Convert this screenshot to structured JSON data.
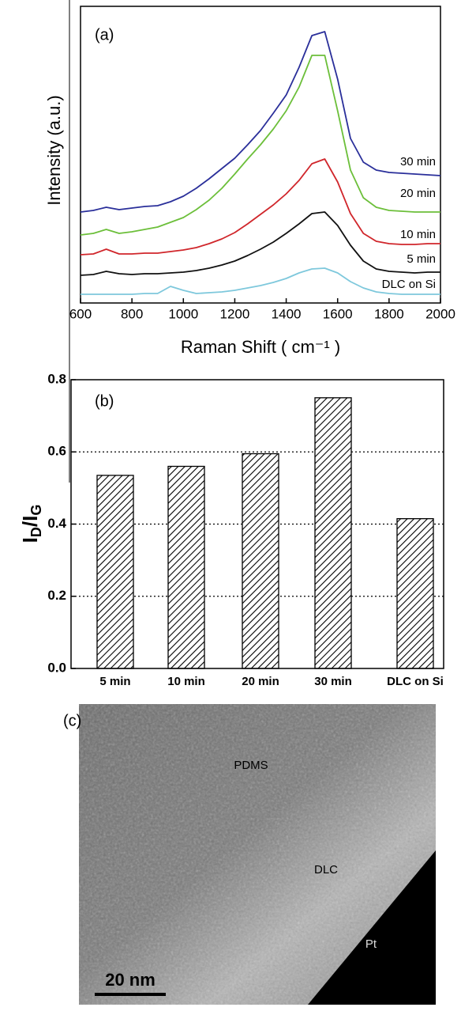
{
  "chart_data": [
    {
      "type": "line",
      "panel_label": "(a)",
      "x_label": "Raman Shift ( cm⁻¹ )",
      "y_label": "Intensity (a.u.)",
      "x": [
        600,
        650,
        700,
        750,
        800,
        850,
        900,
        950,
        1000,
        1050,
        1100,
        1150,
        1200,
        1250,
        1300,
        1350,
        1400,
        1450,
        1500,
        1550,
        1600,
        1650,
        1700,
        1750,
        1800,
        1850,
        1900,
        1950,
        2000
      ],
      "series": [
        {
          "name": "30 min",
          "color": "#2a2f9a",
          "values": [
            115,
            117,
            121,
            118,
            120,
            122,
            123,
            128,
            135,
            145,
            157,
            170,
            183,
            200,
            218,
            240,
            263,
            298,
            338,
            343,
            283,
            208,
            178,
            168,
            165,
            164,
            163,
            162,
            161
          ]
        },
        {
          "name": "20 min",
          "color": "#6cbf3a",
          "values": [
            86,
            88,
            93,
            88,
            90,
            93,
            96,
            102,
            108,
            118,
            130,
            145,
            163,
            182,
            200,
            220,
            243,
            273,
            313,
            313,
            243,
            168,
            133,
            121,
            117,
            116,
            115,
            115,
            115
          ]
        },
        {
          "name": "10 min",
          "color": "#d0262b",
          "values": [
            61,
            62,
            68,
            62,
            62,
            63,
            63,
            65,
            67,
            70,
            75,
            81,
            89,
            100,
            112,
            124,
            138,
            155,
            176,
            182,
            153,
            113,
            88,
            78,
            75,
            74,
            74,
            75,
            75
          ]
        },
        {
          "name": "5 min",
          "color": "#111111",
          "values": [
            35,
            36,
            40,
            37,
            36,
            37,
            37,
            38,
            39,
            41,
            44,
            48,
            53,
            60,
            68,
            77,
            88,
            100,
            113,
            115,
            98,
            73,
            53,
            43,
            40,
            39,
            38,
            39,
            39
          ]
        },
        {
          "name": "DLC on Si",
          "color": "#7ec8dc",
          "values": [
            11,
            11,
            11,
            11,
            11,
            12,
            12,
            21,
            16,
            12,
            13,
            14,
            16,
            19,
            22,
            26,
            31,
            38,
            43,
            44,
            38,
            27,
            19,
            14,
            12,
            11,
            11,
            11,
            11
          ]
        }
      ],
      "xlim": [
        600,
        2000
      ],
      "xticks": [
        600,
        800,
        1000,
        1200,
        1400,
        1600,
        1800,
        2000
      ],
      "ylim": [
        0,
        375
      ]
    },
    {
      "type": "bar",
      "panel_label": "(b)",
      "y_label": [
        "I",
        "D",
        "/I",
        "G"
      ],
      "categories": [
        "5 min",
        "10 min",
        "20 min",
        "30 min",
        "DLC on Si"
      ],
      "values": [
        0.535,
        0.56,
        0.595,
        0.75,
        0.415
      ],
      "ylim": [
        0,
        0.8
      ],
      "yticks": [
        {
          "value": 0,
          "label": "0.0"
        },
        0.2,
        0.4,
        0.6,
        0.8
      ],
      "grid": true
    }
  ],
  "micrograph": {
    "panel_label": "(c)",
    "annotations": [
      "PDMS",
      "DLC",
      "Pt"
    ],
    "scale_bar": "20 nm"
  }
}
